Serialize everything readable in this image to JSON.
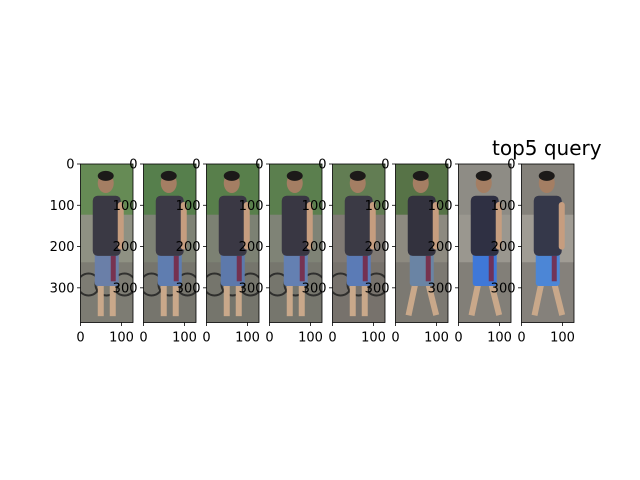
{
  "figure": {
    "title": "top5 query",
    "panel_count": 8,
    "y_axis_ticks": [
      "0",
      "100",
      "200",
      "300"
    ],
    "x_axis_ticks": [
      "0",
      "100"
    ],
    "y_axis_range": [
      384,
      0
    ],
    "x_axis_range": [
      0,
      128
    ],
    "panels": [
      {
        "scene": "bike-rack",
        "shirt": "#3a3944",
        "shorts": "#6a7fa8",
        "background": "#8f9183",
        "grass": "#5f8a4e",
        "bikes": true,
        "pose": "stand"
      },
      {
        "scene": "bike-rack",
        "shirt": "#3c3a46",
        "shorts": "#5f7db0",
        "background": "#7e8275",
        "grass": "#4f7f45",
        "bikes": true,
        "pose": "stand"
      },
      {
        "scene": "bike-rack",
        "shirt": "#3a3844",
        "shorts": "#5d79ab",
        "background": "#7c8173",
        "grass": "#527f44",
        "bikes": true,
        "pose": "stand"
      },
      {
        "scene": "bike-rack",
        "shirt": "#393743",
        "shorts": "#6480b2",
        "background": "#7f8376",
        "grass": "#557f48",
        "bikes": true,
        "pose": "stand"
      },
      {
        "scene": "bike-rack",
        "shirt": "#3b3a45",
        "shorts": "#5b7bb6",
        "background": "#807a74",
        "grass": "#5d7e4d",
        "bikes": true,
        "pose": "stand"
      },
      {
        "scene": "path",
        "shirt": "#33323e",
        "shorts": "#6a84a4",
        "background": "#8d8a80",
        "grass": "#4d6e3d",
        "bikes": false,
        "pose": "walk"
      },
      {
        "scene": "pavement",
        "shirt": "#2f3043",
        "shorts": "#3f78d8",
        "background": "#9a978f",
        "grass": "#8c8a84",
        "bikes": false,
        "pose": "walk"
      },
      {
        "scene": "pavement",
        "shirt": "#35384a",
        "shorts": "#4c86d6",
        "background": "#a09c94",
        "grass": "#7f7c76",
        "bikes": false,
        "pose": "walk"
      }
    ]
  }
}
